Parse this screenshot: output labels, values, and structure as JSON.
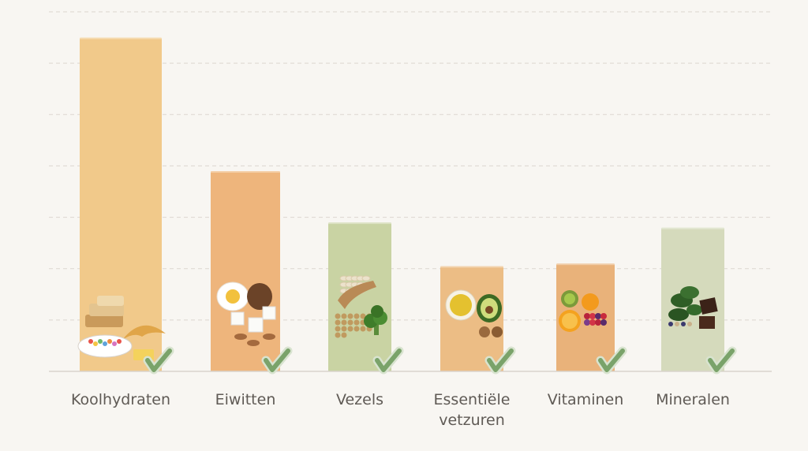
{
  "chart_data": {
    "type": "bar",
    "categories": [
      "Koolhydraten",
      "Eiwitten",
      "Vezels",
      "Essentiële\nvetzuren",
      "Vitaminen",
      "Mineralen"
    ],
    "values": [
      6.5,
      3.9,
      2.9,
      2.05,
      2.1,
      2.8
    ],
    "ylim": [
      0,
      7
    ],
    "grid": true,
    "legend": "none",
    "colors": [
      "#f1c98a",
      "#eeb57c",
      "#c9d3a3",
      "#ecbd85",
      "#e9b27a",
      "#d5dabc"
    ],
    "icons": [
      "bread-pasta-cereal-icon",
      "egg-tofu-nuts-icon",
      "grains-broccoli-icon",
      "oil-avocado-walnut-icon",
      "fruit-icon",
      "greens-chocolate-icon"
    ],
    "check_color": "#7aa36a"
  }
}
